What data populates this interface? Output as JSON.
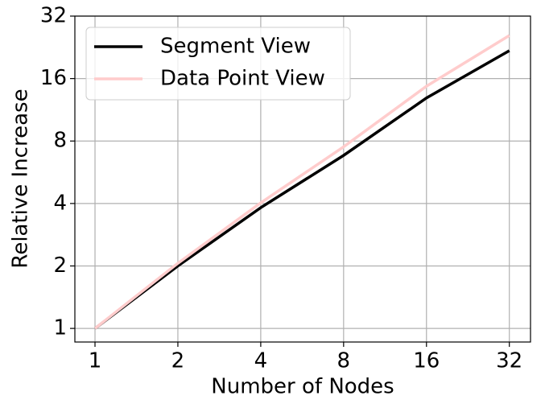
{
  "chart_data": {
    "type": "line",
    "x_label": "Number of Nodes",
    "y_label": "Relative Increase",
    "x": [
      1,
      2,
      4,
      8,
      16,
      32
    ],
    "series": [
      {
        "name": "Segment View",
        "color": "#000000",
        "values": [
          1,
          2.0,
          3.82,
          6.82,
          12.9,
          21.8
        ]
      },
      {
        "name": "Data Point View",
        "color": "#ffcccc",
        "values": [
          1,
          2.06,
          4.03,
          7.5,
          14.7,
          25.8
        ]
      }
    ],
    "xlim": [
      0.845,
      38.2
    ],
    "ylim": [
      0.86,
      32
    ],
    "xticks": [
      1,
      2,
      4,
      8,
      16,
      32
    ],
    "yticks": [
      1,
      2,
      4,
      8,
      16,
      32
    ],
    "xscale": "log",
    "yscale": "log",
    "grid": true,
    "legend": "upper left"
  }
}
